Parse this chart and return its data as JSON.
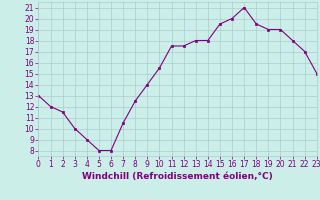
{
  "hours": [
    0,
    1,
    2,
    3,
    4,
    5,
    6,
    7,
    8,
    9,
    10,
    11,
    12,
    13,
    14,
    15,
    16,
    17,
    18,
    19,
    20,
    21,
    22,
    23
  ],
  "values": [
    13,
    12,
    11.5,
    10,
    9,
    8,
    8,
    10.5,
    12.5,
    14,
    15.5,
    17.5,
    17.5,
    18,
    18,
    19.5,
    20,
    21,
    19.5,
    19,
    19,
    18,
    17,
    15
  ],
  "line_color": "#800080",
  "marker_color": "#800080",
  "bg_color": "#cceee8",
  "grid_color": "#aacccc",
  "axis_label_color": "#800080",
  "xlabel": "Windchill (Refroidissement éolien,°C)",
  "xlim": [
    0,
    23
  ],
  "ylim": [
    7.5,
    21.5
  ],
  "yticks": [
    8,
    9,
    10,
    11,
    12,
    13,
    14,
    15,
    16,
    17,
    18,
    19,
    20,
    21
  ],
  "xticks": [
    0,
    1,
    2,
    3,
    4,
    5,
    6,
    7,
    8,
    9,
    10,
    11,
    12,
    13,
    14,
    15,
    16,
    17,
    18,
    19,
    20,
    21,
    22,
    23
  ],
  "tick_fontsize": 5.5,
  "xlabel_fontsize": 6.5
}
